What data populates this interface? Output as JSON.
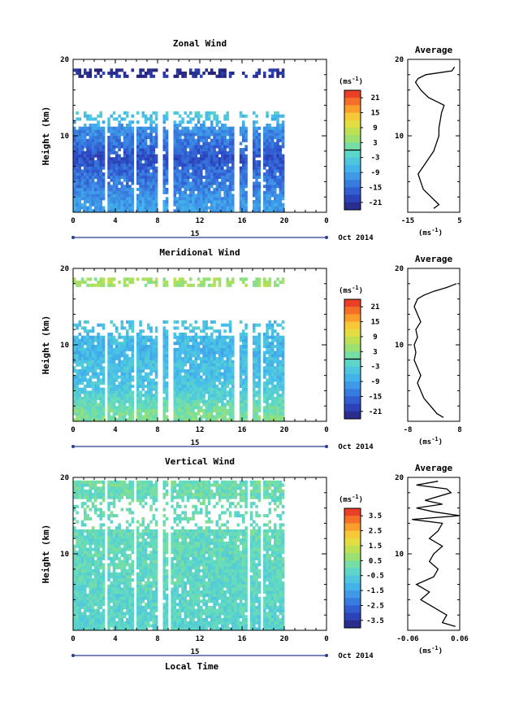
{
  "chart_data": [
    {
      "type": "heatmap",
      "title": "Zonal Wind",
      "ylabel": "Height (km)",
      "xlabel": "",
      "x_ticks": [
        "0",
        "4",
        "8",
        "12",
        "16",
        "20",
        "0"
      ],
      "y_ticks": [
        "10",
        "20"
      ],
      "date_day": "15",
      "date_label": "Oct 2014",
      "xlim_hours": [
        0,
        24
      ],
      "ylim_km": [
        0,
        20
      ],
      "data_coverage_hours": [
        0,
        20
      ],
      "gaps_hours": [
        [
          3.0,
          3.3
        ],
        [
          5.7,
          6.0
        ],
        [
          8.1,
          8.5
        ],
        [
          9.1,
          9.4
        ],
        [
          15.3,
          15.7
        ],
        [
          16.6,
          16.9
        ],
        [
          17.7,
          18.1
        ]
      ],
      "colorbar": {
        "unit": "(ms",
        "unit_exp": "-1",
        "close": ")",
        "ticks": [
          "21",
          "15",
          "9",
          "3",
          "-3",
          "-9",
          "-15",
          "-21"
        ],
        "range": [
          -24,
          24
        ],
        "zero_line": true
      },
      "field_profile": [
        [
          1,
          -10
        ],
        [
          3,
          -13
        ],
        [
          5,
          -15
        ],
        [
          7,
          -18
        ],
        [
          9,
          -14
        ],
        [
          10.5,
          -12
        ],
        [
          12,
          -6
        ],
        [
          13.5,
          -2
        ],
        [
          15,
          -10
        ],
        [
          16.5,
          -16
        ],
        [
          17.5,
          -22
        ]
      ],
      "average": {
        "title": "Average",
        "xlim": [
          -15,
          5
        ],
        "x_ticks": [
          "-15",
          "5"
        ],
        "y_ticks": [
          "10",
          "20"
        ],
        "unit": "(ms",
        "unit_exp": "-1",
        "close": ")",
        "profile": [
          [
            0.5,
            -5
          ],
          [
            1,
            -3
          ],
          [
            2,
            -6
          ],
          [
            3,
            -9
          ],
          [
            4,
            -10
          ],
          [
            5,
            -11
          ],
          [
            6,
            -9
          ],
          [
            7,
            -7
          ],
          [
            8,
            -5
          ],
          [
            9,
            -4
          ],
          [
            10,
            -3
          ],
          [
            11,
            -3
          ],
          [
            12,
            -2.5
          ],
          [
            13,
            -2
          ],
          [
            14,
            -1
          ],
          [
            14.5,
            -4
          ],
          [
            15,
            -7
          ],
          [
            16,
            -10
          ],
          [
            17,
            -12
          ],
          [
            17.5,
            -11
          ],
          [
            18,
            -8
          ],
          [
            18.5,
            2
          ],
          [
            19,
            3
          ]
        ]
      }
    },
    {
      "type": "heatmap",
      "title": "Meridional Wind",
      "ylabel": "Height (km)",
      "xlabel": "",
      "x_ticks": [
        "0",
        "4",
        "8",
        "12",
        "16",
        "20",
        "0"
      ],
      "y_ticks": [
        "10",
        "20"
      ],
      "date_day": "15",
      "date_label": "Oct 2014",
      "xlim_hours": [
        0,
        24
      ],
      "ylim_km": [
        0,
        20
      ],
      "data_coverage_hours": [
        0,
        20
      ],
      "gaps_hours": [
        [
          3.0,
          3.3
        ],
        [
          5.7,
          6.0
        ],
        [
          8.1,
          8.5
        ],
        [
          9.1,
          9.4
        ],
        [
          15.3,
          15.7
        ],
        [
          16.6,
          16.9
        ],
        [
          17.7,
          18.1
        ]
      ],
      "colorbar": {
        "unit": "(ms",
        "unit_exp": "-1",
        "close": ")",
        "ticks": [
          "21",
          "15",
          "9",
          "3",
          "-3",
          "-9",
          "-15",
          "-21"
        ],
        "range": [
          -24,
          24
        ],
        "zero_line": true
      },
      "field_profile": [
        [
          1,
          2
        ],
        [
          2,
          0
        ],
        [
          3,
          -2
        ],
        [
          4,
          -4
        ],
        [
          5,
          -5
        ],
        [
          6,
          -6
        ],
        [
          7,
          -5
        ],
        [
          9,
          -7
        ],
        [
          11,
          -6
        ],
        [
          13,
          -5
        ],
        [
          15,
          -3
        ],
        [
          16.5,
          0
        ],
        [
          17.5,
          5
        ]
      ],
      "average": {
        "title": "Average",
        "xlim": [
          -8,
          8
        ],
        "x_ticks": [
          "-8",
          "8"
        ],
        "y_ticks": [
          "10",
          "20"
        ],
        "unit": "(ms",
        "unit_exp": "-1",
        "close": ")",
        "profile": [
          [
            0.5,
            3
          ],
          [
            1,
            1
          ],
          [
            2,
            -1
          ],
          [
            3,
            -3
          ],
          [
            4,
            -4
          ],
          [
            5,
            -5
          ],
          [
            6,
            -4
          ],
          [
            7,
            -5
          ],
          [
            8,
            -6
          ],
          [
            9,
            -5.5
          ],
          [
            10,
            -6
          ],
          [
            11,
            -5
          ],
          [
            12,
            -5.5
          ],
          [
            13,
            -4
          ],
          [
            14,
            -5
          ],
          [
            15,
            -6
          ],
          [
            16,
            -5
          ],
          [
            16.5,
            -3
          ],
          [
            17,
            0
          ],
          [
            17.5,
            4
          ],
          [
            18,
            7
          ]
        ]
      }
    },
    {
      "type": "heatmap",
      "title": "Vertical Wind",
      "ylabel": "Height (km)",
      "xlabel": "Local Time",
      "x_ticks": [
        "0",
        "4",
        "8",
        "12",
        "16",
        "20",
        "0"
      ],
      "y_ticks": [
        "10",
        "20"
      ],
      "date_day": "15",
      "date_label": "Oct 2014",
      "xlim_hours": [
        0,
        24
      ],
      "ylim_km": [
        0,
        20
      ],
      "data_coverage_hours": [
        0,
        20
      ],
      "gaps_hours": [
        [
          3.0,
          3.2
        ],
        [
          5.8,
          6.0
        ],
        [
          8.1,
          8.4
        ],
        [
          9.1,
          9.3
        ],
        [
          16.6,
          16.8
        ],
        [
          17.7,
          18.0
        ]
      ],
      "colorbar": {
        "unit": "(ms",
        "unit_exp": "-1",
        "close": ")",
        "ticks": [
          "3.5",
          "2.5",
          "1.5",
          "0.5",
          "-0.5",
          "-1.5",
          "-2.5",
          "-3.5"
        ],
        "range": [
          -4,
          4
        ],
        "zero_line": false
      },
      "field_profile": [
        [
          1,
          -0.3
        ],
        [
          5,
          -0.2
        ],
        [
          10,
          -0.1
        ],
        [
          15,
          0.0
        ],
        [
          19,
          0.1
        ]
      ],
      "average": {
        "title": "Average",
        "xlim": [
          -0.06,
          0.06
        ],
        "x_ticks": [
          "-0.06",
          "0.06"
        ],
        "y_ticks": [
          "10",
          "20"
        ],
        "unit": "(ms",
        "unit_exp": "-1",
        "close": ")",
        "profile": [
          [
            0.5,
            0.05
          ],
          [
            1,
            0.02
          ],
          [
            2,
            0.03
          ],
          [
            3,
            0.0
          ],
          [
            4,
            -0.03
          ],
          [
            5,
            -0.01
          ],
          [
            6,
            -0.04
          ],
          [
            7,
            0.0
          ],
          [
            8,
            0.01
          ],
          [
            9,
            -0.01
          ],
          [
            10,
            0.0
          ],
          [
            11,
            0.02
          ],
          [
            12,
            -0.01
          ],
          [
            13,
            0.01
          ],
          [
            14,
            0.02
          ],
          [
            14.5,
            -0.05
          ],
          [
            15,
            0.06
          ],
          [
            15.5,
            0.0
          ],
          [
            16,
            -0.04
          ],
          [
            16.5,
            0.02
          ],
          [
            17,
            -0.02
          ],
          [
            18,
            0.04
          ],
          [
            18.5,
            0.03
          ],
          [
            19,
            -0.04
          ],
          [
            19.5,
            0.01
          ]
        ]
      }
    }
  ]
}
